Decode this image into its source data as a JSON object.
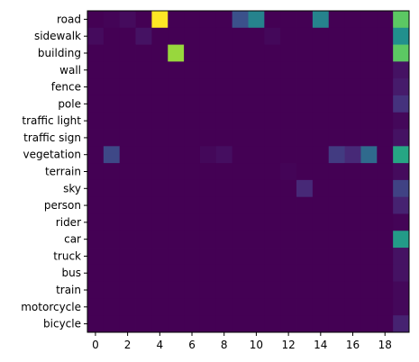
{
  "chart_data": {
    "type": "heatmap",
    "title": "",
    "xlabel": "",
    "ylabel": "",
    "x_ticks": [
      0,
      2,
      4,
      6,
      8,
      10,
      12,
      14,
      16,
      18
    ],
    "columns": [
      0,
      1,
      2,
      3,
      4,
      5,
      6,
      7,
      8,
      9,
      10,
      11,
      12,
      13,
      14,
      15,
      16,
      17,
      18,
      19
    ],
    "rows": [
      "road",
      "sidewalk",
      "building",
      "wall",
      "fence",
      "pole",
      "traffic light",
      "traffic sign",
      "vegetation",
      "terrain",
      "sky",
      "person",
      "rider",
      "car",
      "truck",
      "bus",
      "train",
      "motorcycle",
      "bicycle"
    ],
    "colormap": "viridis",
    "value_range": [
      0,
      1
    ],
    "values": [
      [
        0.0,
        0.01,
        0.03,
        0.0,
        1.0,
        0.0,
        0.0,
        0.0,
        0.0,
        0.25,
        0.45,
        0.0,
        0.0,
        0.0,
        0.45,
        0.0,
        0.0,
        0.0,
        0.0,
        0.75
      ],
      [
        0.03,
        0.0,
        0.0,
        0.05,
        0.0,
        0.0,
        0.0,
        0.0,
        0.0,
        0.0,
        0.0,
        0.02,
        0.0,
        0.0,
        0.0,
        0.0,
        0.0,
        0.0,
        0.0,
        0.5
      ],
      [
        0.0,
        0.0,
        0.0,
        0.0,
        0.0,
        0.85,
        0.0,
        0.0,
        0.0,
        0.0,
        0.0,
        0.0,
        0.0,
        0.0,
        0.0,
        0.0,
        0.0,
        0.0,
        0.0,
        0.75
      ],
      [
        0.0,
        0.0,
        0.0,
        0.0,
        0.0,
        0.0,
        0.0,
        0.0,
        0.0,
        0.0,
        0.0,
        0.0,
        0.0,
        0.0,
        0.0,
        0.0,
        0.0,
        0.0,
        0.0,
        0.05
      ],
      [
        0.0,
        0.0,
        0.0,
        0.0,
        0.0,
        0.0,
        0.0,
        0.0,
        0.0,
        0.0,
        0.0,
        0.0,
        0.0,
        0.0,
        0.0,
        0.0,
        0.0,
        0.0,
        0.0,
        0.08
      ],
      [
        0.0,
        0.0,
        0.0,
        0.0,
        0.0,
        0.0,
        0.0,
        0.0,
        0.0,
        0.0,
        0.0,
        0.0,
        0.0,
        0.0,
        0.0,
        0.0,
        0.0,
        0.0,
        0.0,
        0.15
      ],
      [
        0.0,
        0.0,
        0.0,
        0.0,
        0.0,
        0.0,
        0.0,
        0.0,
        0.0,
        0.0,
        0.0,
        0.0,
        0.0,
        0.0,
        0.0,
        0.0,
        0.0,
        0.0,
        0.0,
        0.02
      ],
      [
        0.0,
        0.0,
        0.0,
        0.0,
        0.0,
        0.0,
        0.0,
        0.0,
        0.0,
        0.0,
        0.0,
        0.0,
        0.0,
        0.0,
        0.0,
        0.0,
        0.0,
        0.0,
        0.0,
        0.05
      ],
      [
        0.0,
        0.22,
        0.0,
        0.0,
        0.0,
        0.0,
        0.0,
        0.02,
        0.04,
        0.0,
        0.0,
        0.0,
        0.0,
        0.0,
        0.0,
        0.18,
        0.12,
        0.35,
        0.0,
        0.6
      ],
      [
        0.0,
        0.0,
        0.0,
        0.0,
        0.0,
        0.0,
        0.0,
        0.0,
        0.0,
        0.0,
        0.0,
        0.0,
        0.01,
        0.0,
        0.0,
        0.0,
        0.0,
        0.0,
        0.0,
        0.03
      ],
      [
        0.0,
        0.0,
        0.0,
        0.0,
        0.0,
        0.0,
        0.0,
        0.0,
        0.0,
        0.0,
        0.0,
        0.0,
        0.0,
        0.12,
        0.0,
        0.0,
        0.0,
        0.0,
        0.0,
        0.2
      ],
      [
        0.0,
        0.0,
        0.0,
        0.0,
        0.0,
        0.0,
        0.0,
        0.0,
        0.0,
        0.0,
        0.0,
        0.0,
        0.0,
        0.0,
        0.0,
        0.0,
        0.0,
        0.0,
        0.0,
        0.1
      ],
      [
        0.0,
        0.0,
        0.0,
        0.0,
        0.0,
        0.0,
        0.0,
        0.0,
        0.0,
        0.0,
        0.0,
        0.0,
        0.0,
        0.0,
        0.0,
        0.0,
        0.0,
        0.0,
        0.0,
        0.01
      ],
      [
        0.0,
        0.0,
        0.0,
        0.0,
        0.0,
        0.0,
        0.0,
        0.0,
        0.0,
        0.0,
        0.0,
        0.0,
        0.0,
        0.0,
        0.0,
        0.0,
        0.0,
        0.0,
        0.0,
        0.55
      ],
      [
        0.0,
        0.0,
        0.0,
        0.0,
        0.0,
        0.0,
        0.0,
        0.0,
        0.0,
        0.0,
        0.0,
        0.0,
        0.0,
        0.0,
        0.0,
        0.0,
        0.0,
        0.0,
        0.0,
        0.05
      ],
      [
        0.0,
        0.0,
        0.0,
        0.0,
        0.0,
        0.0,
        0.0,
        0.0,
        0.0,
        0.0,
        0.0,
        0.0,
        0.0,
        0.0,
        0.0,
        0.0,
        0.0,
        0.0,
        0.0,
        0.05
      ],
      [
        0.0,
        0.0,
        0.0,
        0.0,
        0.0,
        0.0,
        0.0,
        0.0,
        0.0,
        0.0,
        0.0,
        0.0,
        0.0,
        0.0,
        0.0,
        0.0,
        0.0,
        0.0,
        0.0,
        0.02
      ],
      [
        0.0,
        0.0,
        0.0,
        0.0,
        0.0,
        0.0,
        0.0,
        0.0,
        0.0,
        0.0,
        0.0,
        0.0,
        0.0,
        0.0,
        0.0,
        0.0,
        0.0,
        0.0,
        0.0,
        0.02
      ],
      [
        0.0,
        0.0,
        0.0,
        0.0,
        0.0,
        0.0,
        0.0,
        0.0,
        0.0,
        0.0,
        0.0,
        0.0,
        0.0,
        0.0,
        0.0,
        0.0,
        0.0,
        0.0,
        0.0,
        0.1
      ]
    ]
  }
}
